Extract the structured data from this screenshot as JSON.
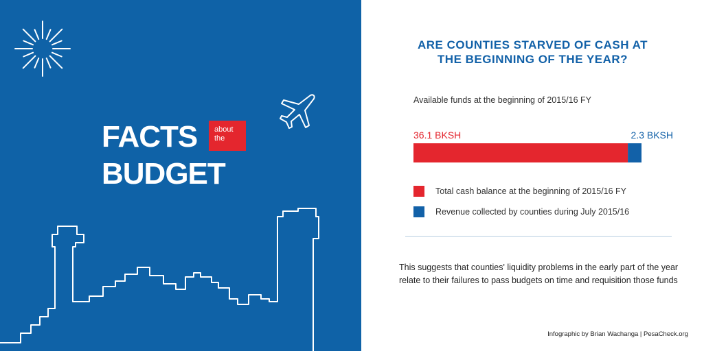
{
  "left_panel": {
    "facts_word": "FACTS",
    "about_line1": "about",
    "about_line2": "the",
    "budget_word": "BUDGET",
    "icons": [
      "sunburst-icon",
      "airplane-icon",
      "city-skyline-icon"
    ],
    "colors": {
      "background": "#0f62a7",
      "accent": "#e4262e"
    }
  },
  "right_panel": {
    "question_line1": "ARE COUNTIES STARVED OF CASH AT",
    "question_line2": "THE BEGINNING OF THE YEAR?",
    "note": "This suggests that counties' liquidity problems in the early part of the year relate to their failures to pass budgets on time and requisition those funds",
    "credit": "Infographic by Brian Wachanga | PesaCheck.org"
  },
  "chart_data": {
    "type": "bar",
    "orientation": "horizontal-stacked",
    "title": "Available funds at the beginning of 2015/16 FY",
    "unit": "BKSH",
    "series": [
      {
        "name": "Total cash balance at the beginning of 2015/16 FY",
        "value": 36.1,
        "label": "36.1 BKSH",
        "color": "#e4262e"
      },
      {
        "name": "Revenue collected by counties during July 2015/16",
        "value": 2.3,
        "label": "2.3 BKSH",
        "color": "#1261a8"
      }
    ],
    "legend_position": "bottom"
  }
}
